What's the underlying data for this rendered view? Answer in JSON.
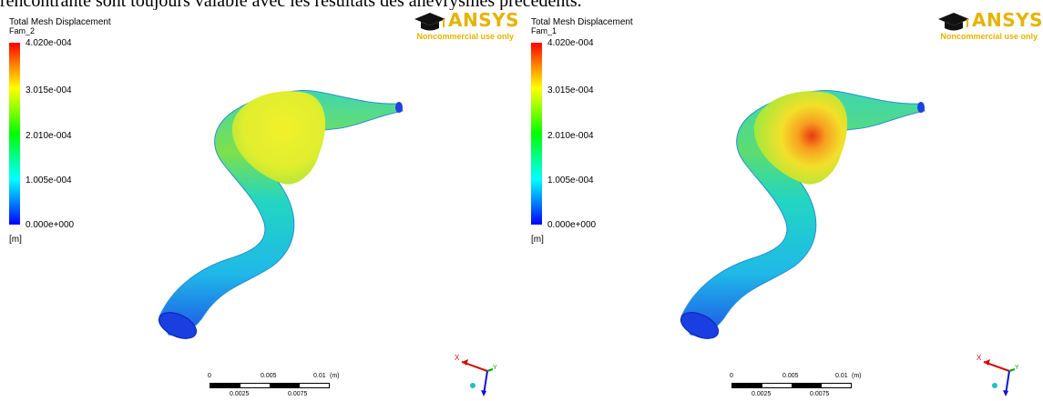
{
  "caption": "rencontrante sont toujours valable avec les résultats des anévrysmes précédents.",
  "panels": [
    {
      "legend_title": "Total Mesh Displacement",
      "legend_sub": "Fam_2",
      "ticks": [
        "4.020e-004",
        "3.015e-004",
        "2.010e-004",
        "1.005e-004",
        "0.000e+000"
      ],
      "unit": "[m]",
      "logo_text": "ANSYS",
      "logo_note": "Noncommercial use only",
      "scale_labels": {
        "zero": "0",
        "mid": "0.005",
        "end": "0.01",
        "unit": "(m)",
        "q1": "0.0025",
        "q3": "0.0075"
      },
      "triad": {
        "x": "X",
        "y": "Y"
      }
    },
    {
      "legend_title": "Total Mesh Displacement",
      "legend_sub": "Fam_1",
      "ticks": [
        "4.020e-004",
        "3.015e-004",
        "2.010e-004",
        "1.005e-004",
        "0.000e+000"
      ],
      "unit": "[m]",
      "logo_text": "ANSYS",
      "logo_note": "Noncommercial use only",
      "scale_labels": {
        "zero": "0",
        "mid": "0.005",
        "end": "0.01",
        "unit": "(m)",
        "q1": "0.0025",
        "q3": "0.0075"
      },
      "triad": {
        "x": "X",
        "y": "Y"
      }
    }
  ],
  "colors": {
    "max": "#ff0000",
    "high": "#ffff00",
    "mid": "#00ff00",
    "low": "#00ffff",
    "min": "#0000ff",
    "logo": "#e6b300"
  }
}
